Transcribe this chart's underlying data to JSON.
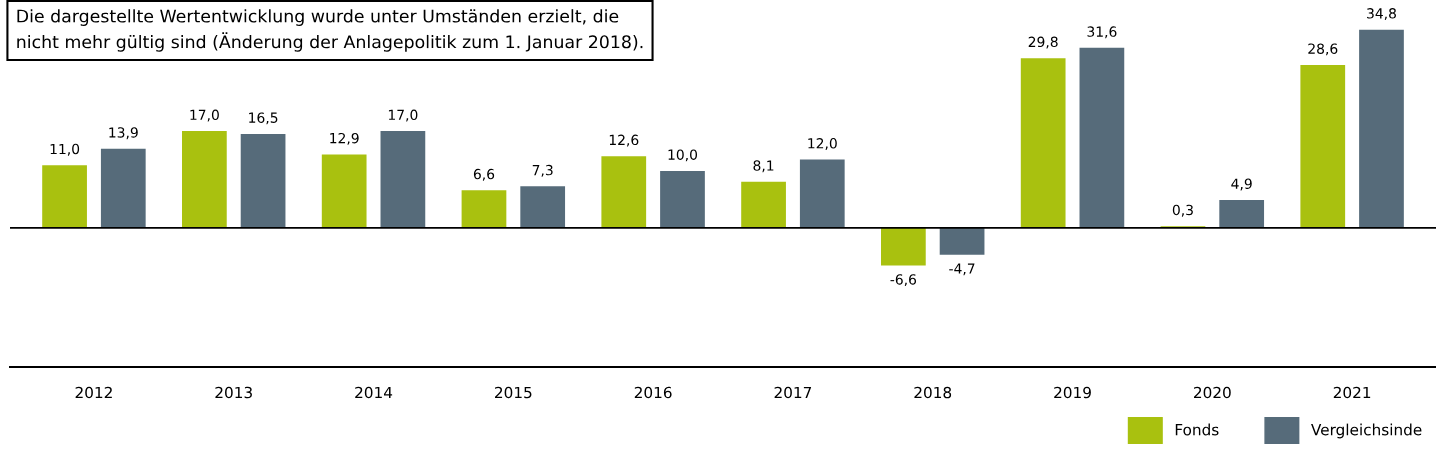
{
  "chart_data": {
    "type": "bar",
    "categories": [
      "2012",
      "2013",
      "2014",
      "2015",
      "2016",
      "2017",
      "2018",
      "2019",
      "2020",
      "2021"
    ],
    "series": [
      {
        "name": "Fonds",
        "color": "#a9c10f",
        "values": [
          11.0,
          17.0,
          12.9,
          6.6,
          12.6,
          8.1,
          -6.6,
          29.8,
          0.3,
          28.6
        ],
        "value_labels": [
          "11,0",
          "17,0",
          "12,9",
          "6,6",
          "12,6",
          "8,1",
          "-6,6",
          "29,8",
          "0,3",
          "28,6"
        ]
      },
      {
        "name": "Vergleichsinde",
        "color": "#566b7a",
        "values": [
          13.9,
          16.5,
          17.0,
          7.3,
          10.0,
          12.0,
          -4.7,
          31.6,
          4.9,
          34.8
        ],
        "value_labels": [
          "13,9",
          "16,5",
          "17,0",
          "7,3",
          "10,0",
          "12,0",
          "-4,7",
          "31,6",
          "4,9",
          "34,8"
        ]
      }
    ],
    "ylim": [
      -24.4,
      40
    ],
    "ref_lines": [
      {
        "axis": "y",
        "value": 0,
        "color": "#000000"
      }
    ],
    "annotations": [
      "Die dargestellte Wertentwicklung wurde unter Umständen erzielt, die\nnicht mehr gültig sind (Änderung der Anlagepolitik zum 1. Januar 2018)."
    ],
    "legend": "bottom right",
    "grid": false,
    "tick_labels": "x"
  }
}
